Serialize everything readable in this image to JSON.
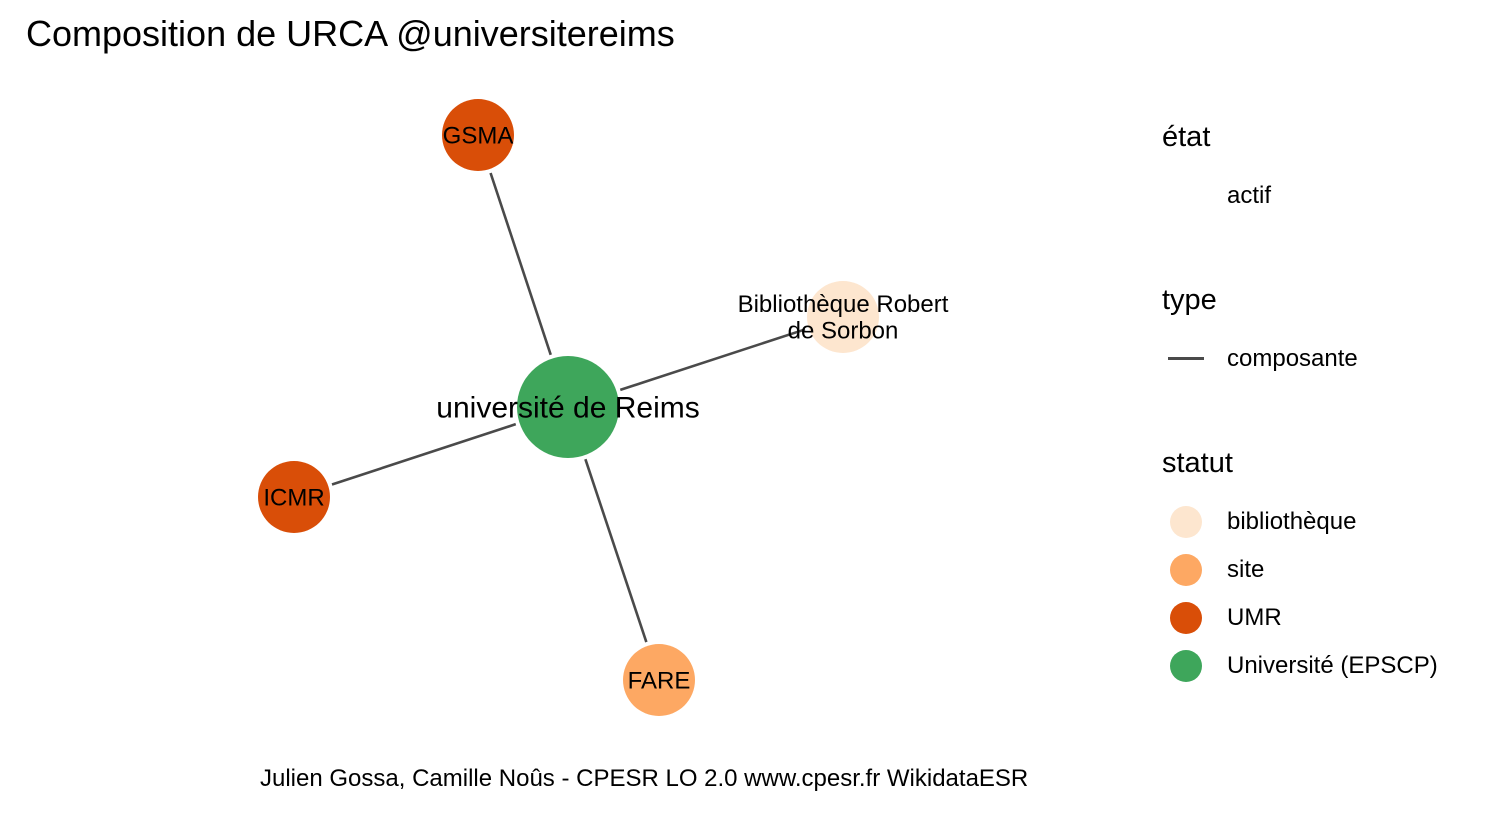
{
  "title": "Composition de URCA @universitereims",
  "graph": {
    "nodes": [
      {
        "id": "reims",
        "label": "université de Reims",
        "statut": "Université (EPSCP)",
        "color": "#3ea65b",
        "size": "large"
      },
      {
        "id": "gsma",
        "label": "GSMA",
        "statut": "UMR",
        "color": "#d94e08",
        "size": "small"
      },
      {
        "id": "biblio",
        "label": "Bibliothèque Robert de Sorbon",
        "label_lines": [
          "Bibliothèque Robert",
          "de Sorbon"
        ],
        "statut": "bibliothèque",
        "color": "#fde6cf",
        "size": "small"
      },
      {
        "id": "icmr",
        "label": "ICMR",
        "statut": "UMR",
        "color": "#d94e08",
        "size": "small"
      },
      {
        "id": "fare",
        "label": "FARE",
        "statut": "site",
        "color": "#fda863",
        "size": "small"
      }
    ],
    "edges": [
      {
        "from": "reims",
        "to": "gsma",
        "type": "composante"
      },
      {
        "from": "reims",
        "to": "biblio",
        "type": "composante"
      },
      {
        "from": "reims",
        "to": "icmr",
        "type": "composante"
      },
      {
        "from": "reims",
        "to": "fare",
        "type": "composante"
      }
    ]
  },
  "legend": {
    "etat": {
      "title": "état",
      "items": [
        {
          "label": "actif"
        }
      ]
    },
    "type": {
      "title": "type",
      "items": [
        {
          "label": "composante",
          "color": "#4a4a4a"
        }
      ]
    },
    "statut": {
      "title": "statut",
      "items": [
        {
          "label": "bibliothèque",
          "color": "#fde6cf"
        },
        {
          "label": "site",
          "color": "#fda863"
        },
        {
          "label": "UMR",
          "color": "#d94e08"
        },
        {
          "label": "Université (EPSCP)",
          "color": "#3ea65b"
        }
      ]
    }
  },
  "caption": "Julien Gossa, Camille Noûs - CPESR LO 2.0 www.cpesr.fr WikidataESR"
}
